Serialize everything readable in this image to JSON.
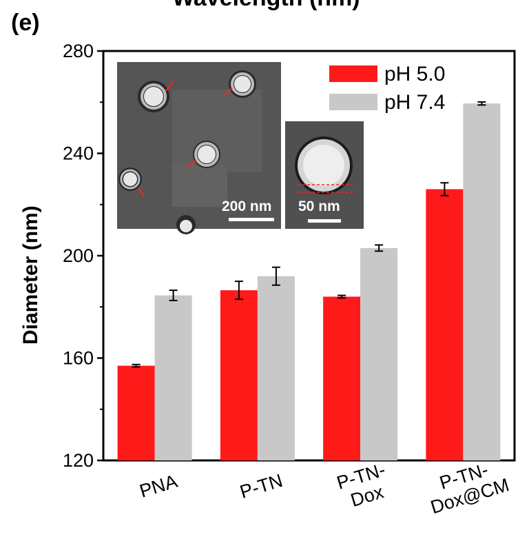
{
  "header": {
    "cut_title": "Wavelength (nm)",
    "panel_letter": "(e)"
  },
  "chart_data": {
    "type": "bar",
    "ylabel": "Diameter (nm)",
    "xlabel": "",
    "ylim": [
      120,
      280
    ],
    "yticks": [
      120,
      160,
      200,
      240,
      280
    ],
    "categories": [
      [
        "PNA"
      ],
      [
        "P-TN"
      ],
      [
        "P-TN-",
        "Dox"
      ],
      [
        "P-TN-",
        "Dox@CM"
      ]
    ],
    "series": [
      {
        "name": "pH 5.0",
        "color": "#ff1a1a",
        "values": [
          157,
          186.5,
          184,
          226
        ],
        "errors": [
          0.5,
          3.5,
          0.5,
          2.5
        ]
      },
      {
        "name": "pH 7.4",
        "color": "#c8c8c8",
        "values": [
          184.5,
          192,
          203,
          259.5
        ],
        "errors": [
          2,
          3.5,
          1.2,
          0.6
        ]
      }
    ],
    "legend_position": "top-right",
    "grid": false
  },
  "insets": {
    "left_scale": "200 nm",
    "right_scale": "50 nm"
  }
}
